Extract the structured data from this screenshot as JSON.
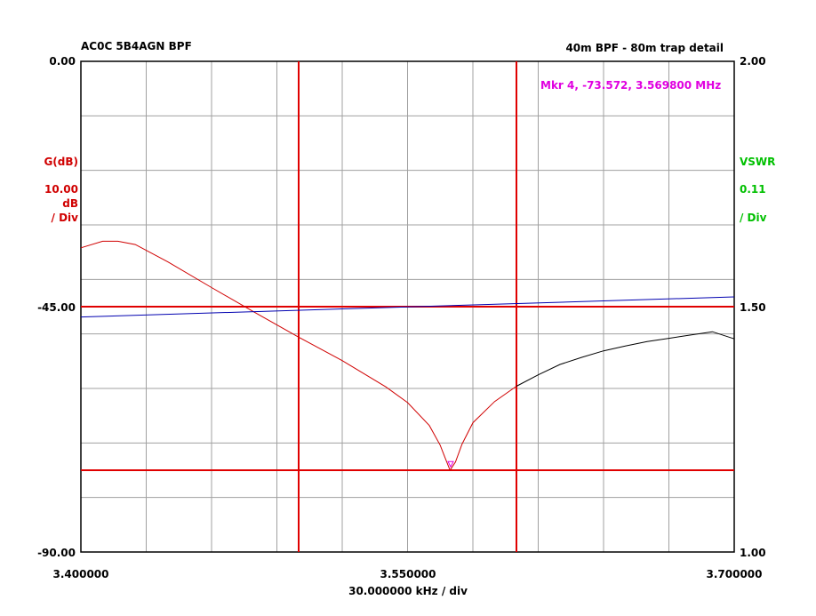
{
  "header": {
    "left_title": "AC0C 5B4AGN BPF",
    "right_title": "40m BPF - 80m trap detail"
  },
  "marker_readout": "Mkr 4, -73.572, 3.569800 MHz",
  "colors": {
    "gain_trace": "#d00000",
    "vswr_trace": "#0000b0",
    "cursor_lines": "#e00000",
    "grid": "#a0a0a0",
    "left_axis_text": "#d00000",
    "right_axis_text": "#00c000",
    "marker_text": "#e000e0",
    "tail_trace": "#000000"
  },
  "chart_data": {
    "type": "line",
    "x_unit": "MHz",
    "xlim": [
      3.4,
      3.7
    ],
    "x_div": "30.000000 kHz / div",
    "left_axis": {
      "name": "G(dB)",
      "scale_value": "10.00",
      "scale_unit": "dB",
      "scale_per": "/ Div",
      "ylim": [
        -90,
        0
      ],
      "tick_labels": [
        "0.00",
        "-45.00",
        "-90.00"
      ],
      "tick_values": [
        0,
        -45,
        -90
      ]
    },
    "right_axis": {
      "name": "VSWR",
      "scale_value": "0.11",
      "scale_per": "/ Div",
      "ylim": [
        1.0,
        2.0
      ],
      "tick_labels": [
        "2.00",
        "1.50",
        "1.00"
      ],
      "tick_values": [
        2.0,
        1.5,
        1.0
      ]
    },
    "x_tick_labels": [
      "3.400000",
      "3.550000",
      "3.700000"
    ],
    "x_tick_values": [
      3.4,
      3.55,
      3.7
    ],
    "grid": true,
    "divisions": {
      "x": 10,
      "y": 9
    },
    "series": [
      {
        "axis": "left",
        "x": [
          3.4,
          3.41,
          3.417,
          3.425,
          3.44,
          3.46,
          3.48,
          3.5,
          3.52,
          3.54,
          3.55,
          3.56,
          3.565,
          3.567,
          3.5695,
          3.572,
          3.575,
          3.58,
          3.59,
          3.6
        ],
        "y": [
          -34.2,
          -33.0,
          -33.0,
          -33.6,
          -36.8,
          -41.5,
          -46.1,
          -50.6,
          -54.9,
          -59.7,
          -62.6,
          -66.8,
          -70.4,
          -72.5,
          -75.0,
          -73.5,
          -70.2,
          -66.3,
          -62.4,
          -59.6
        ]
      },
      {
        "axis": "left",
        "x": [
          3.6,
          3.61,
          3.62,
          3.63,
          3.64,
          3.65,
          3.66,
          3.67,
          3.68,
          3.69,
          3.7
        ],
        "y": [
          -59.6,
          -57.5,
          -55.6,
          -54.3,
          -53.1,
          -52.2,
          -51.4,
          -50.8,
          -50.2,
          -49.6,
          -50.9
        ]
      },
      {
        "axis": "right",
        "x": [
          3.4,
          3.7
        ],
        "y": [
          1.479,
          1.52
        ]
      }
    ],
    "cursors": {
      "vertical_x": [
        3.5,
        3.6
      ],
      "horizontal_left_y": [
        -45.0,
        -75.0
      ]
    },
    "marker": {
      "x": 3.5698,
      "y": -73.572,
      "text_key": "marker_readout"
    }
  }
}
